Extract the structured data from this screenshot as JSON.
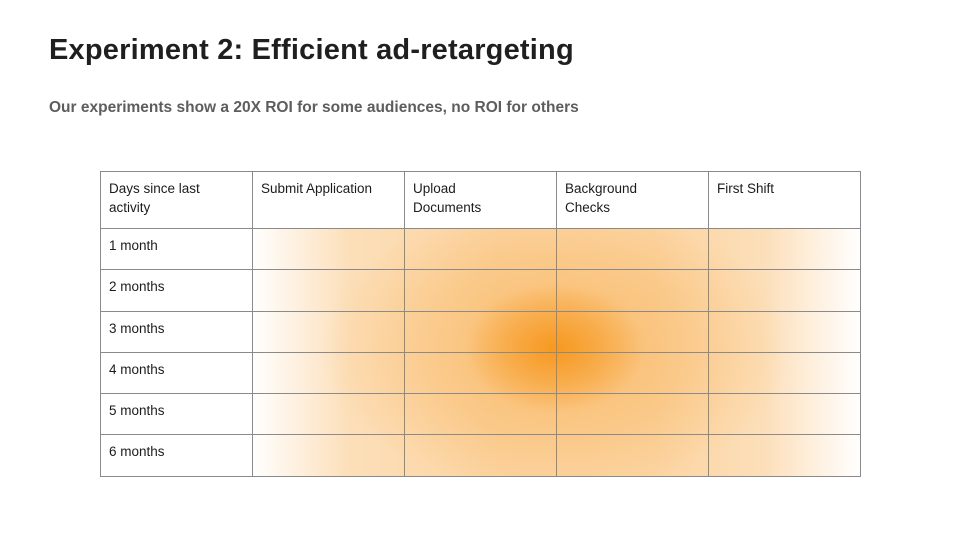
{
  "slide": {
    "title": "Experiment 2: Efficient ad-retargeting",
    "subtitle": "Our experiments show a 20X ROI for some audiences, no ROI for others"
  },
  "table": {
    "columns": [
      "Days since last\nactivity",
      "Submit Application",
      "Upload\nDocuments",
      "Background\nChecks",
      "First Shift"
    ],
    "rows": [
      "1 month",
      "2 months",
      "3 months",
      "4 months",
      "5 months",
      "6 months"
    ],
    "border_color": "#8a8a8a"
  },
  "chart_data": {
    "type": "heatmap",
    "title": "Experiment 2: Efficient ad-retargeting",
    "subtitle": "Our experiments show a 20X ROI for some audiences, no ROI for others",
    "x_categories": [
      "Submit Application",
      "Upload Documents",
      "Background Checks",
      "First Shift"
    ],
    "y_categories": [
      "1 month",
      "2 months",
      "3 months",
      "4 months",
      "5 months",
      "6 months"
    ],
    "y_axis_label": "Days since last activity",
    "scale": "relative intensity 0-1, estimated from gradient shading (no numeric labels shown)",
    "values": [
      [
        0.25,
        0.42,
        0.45,
        0.3
      ],
      [
        0.3,
        0.52,
        0.57,
        0.33
      ],
      [
        0.32,
        0.68,
        0.78,
        0.35
      ],
      [
        0.32,
        0.65,
        0.74,
        0.35
      ],
      [
        0.3,
        0.5,
        0.55,
        0.33
      ],
      [
        0.27,
        0.45,
        0.48,
        0.3
      ]
    ],
    "peak": {
      "columns": "Upload Documents / Background Checks boundary",
      "rows": "3-4 months"
    },
    "colors": {
      "low": "#ffffff",
      "high": "#f69416"
    },
    "legend": "none",
    "grid": true
  }
}
